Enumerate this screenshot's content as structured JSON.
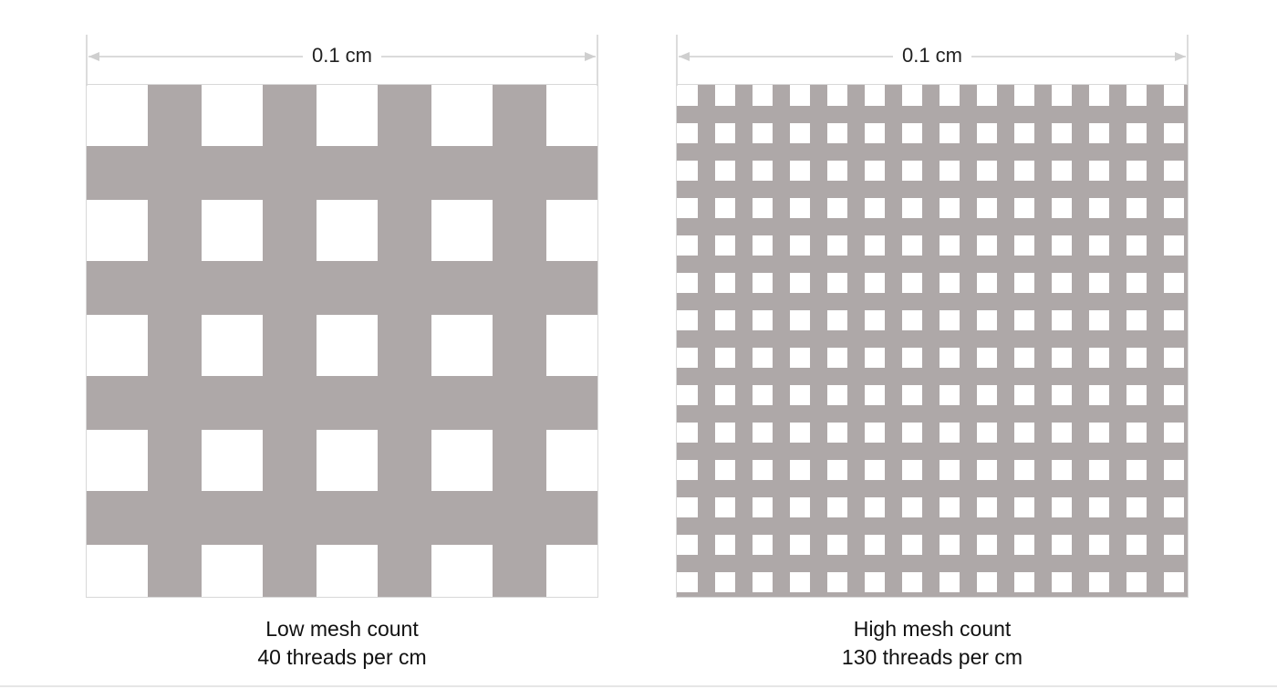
{
  "panels": {
    "low": {
      "dimension_label": "0.1 cm",
      "caption_title": "Low mesh count",
      "caption_detail": "40 threads per cm",
      "thread_color": "#aea8a8",
      "openings_per_row": 4.5
    },
    "high": {
      "dimension_label": "0.1 cm",
      "caption_title": "High mesh count",
      "caption_detail": "130 threads per cm",
      "thread_color": "#aea8a8",
      "openings_per_row": 14
    }
  },
  "colors": {
    "dimension_line": "#cfcfcf",
    "frame": "#d8d8d8",
    "background": "#ffffff"
  }
}
